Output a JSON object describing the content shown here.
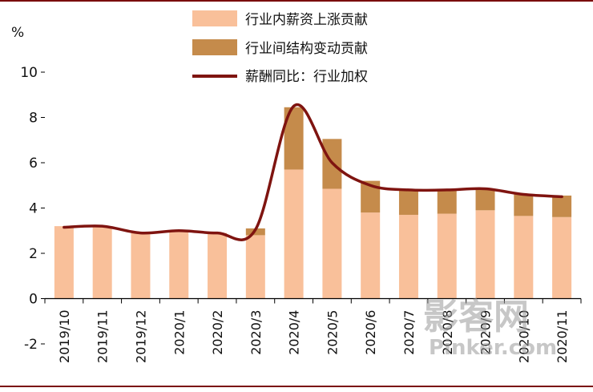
{
  "chart_data": {
    "type": "bar",
    "stacked": true,
    "unit_label": "%",
    "categories": [
      "2019/10",
      "2019/11",
      "2019/12",
      "2020/1",
      "2020/2",
      "2020/3",
      "2020/4",
      "2020/5",
      "2020/6",
      "2020/7",
      "2020/8",
      "2020/9",
      "2020/10",
      "2020/11"
    ],
    "series": [
      {
        "name": "行业内薪资上涨贡献",
        "kind": "bar",
        "color": "#f9c09a",
        "values": [
          3.2,
          3.2,
          2.9,
          3.0,
          2.9,
          2.8,
          5.7,
          4.85,
          3.8,
          3.7,
          3.75,
          3.9,
          3.65,
          3.6
        ]
      },
      {
        "name": "行业间结构变动贡献",
        "kind": "bar",
        "color": "#c58b4b",
        "values": [
          0.0,
          0.0,
          0.0,
          0.0,
          0.0,
          0.3,
          2.75,
          2.2,
          1.4,
          1.1,
          1.05,
          0.95,
          0.95,
          0.95
        ]
      },
      {
        "name": "薪酬同比：行业加权",
        "kind": "line",
        "color": "#7f1410",
        "values": [
          3.15,
          3.2,
          2.9,
          3.0,
          2.9,
          3.05,
          8.5,
          6.0,
          5.0,
          4.8,
          4.8,
          4.85,
          4.6,
          4.5
        ]
      }
    ],
    "ylim": [
      -2,
      10
    ],
    "yticks": [
      -2,
      0,
      2,
      4,
      6,
      8,
      10
    ],
    "grid": false,
    "legend": "top"
  },
  "watermark": "影客网 Pinker.com"
}
